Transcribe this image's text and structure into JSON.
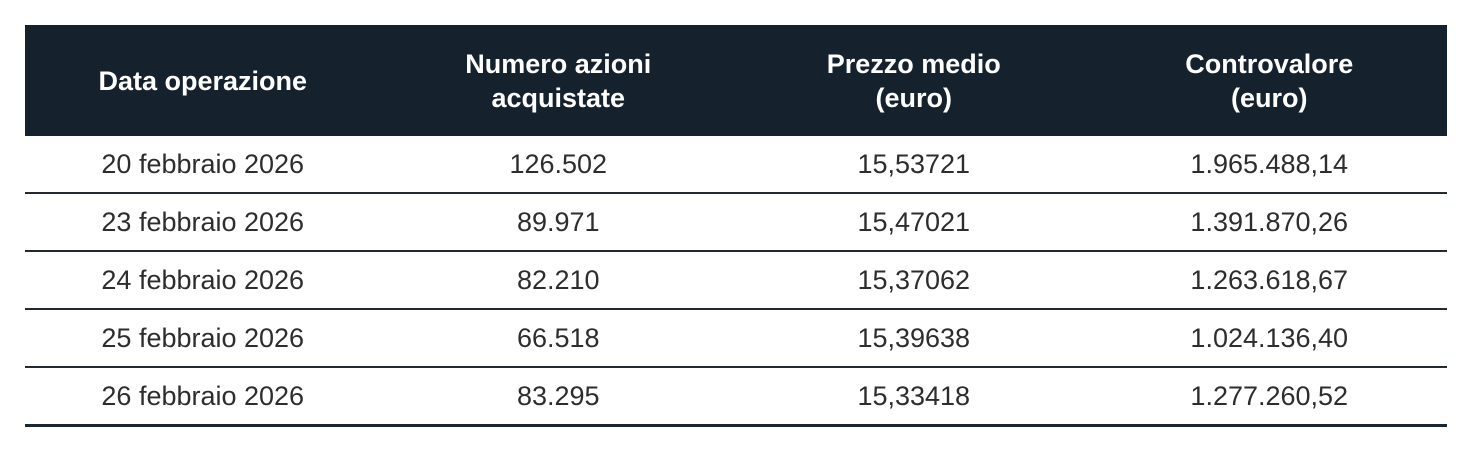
{
  "table": {
    "name": "share-buyback-operations",
    "columns": [
      {
        "label": "Data operazione"
      },
      {
        "label": "Numero azioni\nacquistate"
      },
      {
        "label": "Prezzo medio\n(euro)"
      },
      {
        "label": "Controvalore\n(euro)"
      }
    ],
    "rows": [
      [
        "20 febbraio 2026",
        "126.502",
        "15,53721",
        "1.965.488,14"
      ],
      [
        "23 febbraio 2026",
        "89.971",
        "15,47021",
        "1.391.870,26"
      ],
      [
        "24 febbraio 2026",
        "82.210",
        "15,37062",
        "1.263.618,67"
      ],
      [
        "25 febbraio 2026",
        "66.518",
        "15,39638",
        "1.024.136,40"
      ],
      [
        "26 febbraio 2026",
        "83.295",
        "15,33418",
        "1.277.260,52"
      ]
    ],
    "colors": {
      "header_bg": "#15222e",
      "header_text": "#ffffff",
      "body_text": "#2d2d2d",
      "row_divider": "#222b34",
      "bottom_border": "#1b2733"
    }
  }
}
